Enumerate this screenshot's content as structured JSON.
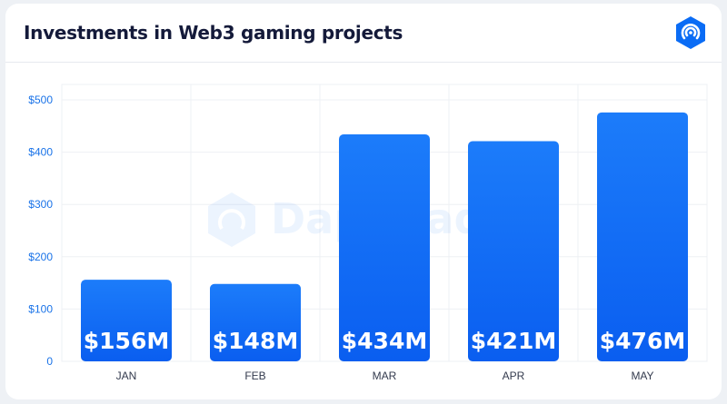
{
  "header": {
    "title": "Investments in Web3 gaming projects",
    "logo_icon": "dappradar-logo-icon"
  },
  "watermark": {
    "text": "DappRadar"
  },
  "colors": {
    "bar_top": "#1c7cfa",
    "bar_bottom": "#0a5ef0",
    "axis_label": "#1a73e8",
    "title": "#141a3a",
    "grid": "#eef0f4"
  },
  "chart_data": {
    "type": "bar",
    "categories": [
      "JAN",
      "FEB",
      "MAR",
      "APR",
      "MAY"
    ],
    "values": [
      156,
      148,
      434,
      421,
      476
    ],
    "data_labels": [
      "$156M",
      "$148M",
      "$434M",
      "$421M",
      "$476M"
    ],
    "yticks": [
      "0",
      "$100",
      "$200",
      "$300",
      "$400",
      "$500"
    ],
    "ylim": [
      0,
      500
    ],
    "grid": true,
    "title": "Investments in Web3 gaming projects",
    "xlabel": "",
    "ylabel": ""
  }
}
